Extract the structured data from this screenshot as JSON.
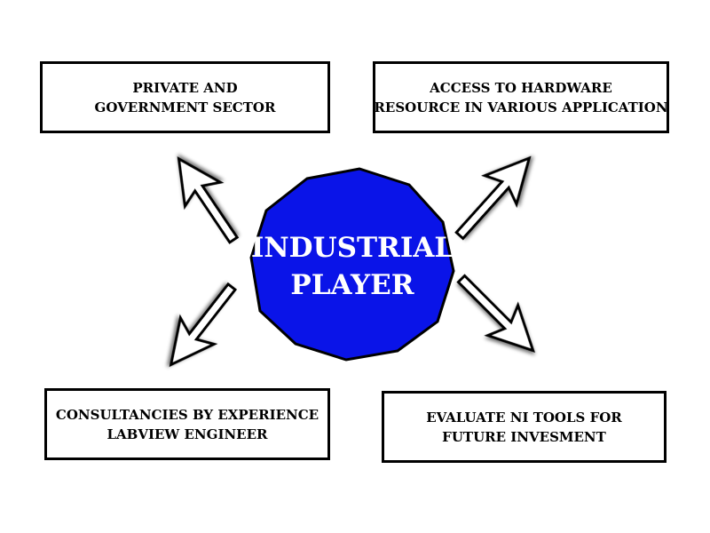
{
  "diagram": {
    "center": {
      "lines": [
        "INDUSTRIAL",
        "PLAYER"
      ],
      "fill_color": "#0a14e8",
      "outline_color": "#000000",
      "text_color": "#ffffff"
    },
    "boxes": {
      "top_left": {
        "lines": [
          "PRIVATE AND",
          "GOVERNMENT SECTOR"
        ]
      },
      "top_right": {
        "lines": [
          "ACCESS TO HARDWARE",
          "RESOURCE IN VARIOUS APPLICATION"
        ]
      },
      "bottom_left": {
        "lines": [
          "CONSULTANCIES BY EXPERIENCE",
          "LABVIEW ENGINEER"
        ]
      },
      "bottom_right": {
        "lines": [
          "EVALUATE NI TOOLS FOR",
          "FUTURE INVESMENT"
        ]
      }
    },
    "arrows": [
      {
        "direction": "up-left",
        "target": "top_left"
      },
      {
        "direction": "up-right",
        "target": "top_right"
      },
      {
        "direction": "down-left",
        "target": "bottom_left"
      },
      {
        "direction": "down-right",
        "target": "bottom_right"
      }
    ]
  }
}
